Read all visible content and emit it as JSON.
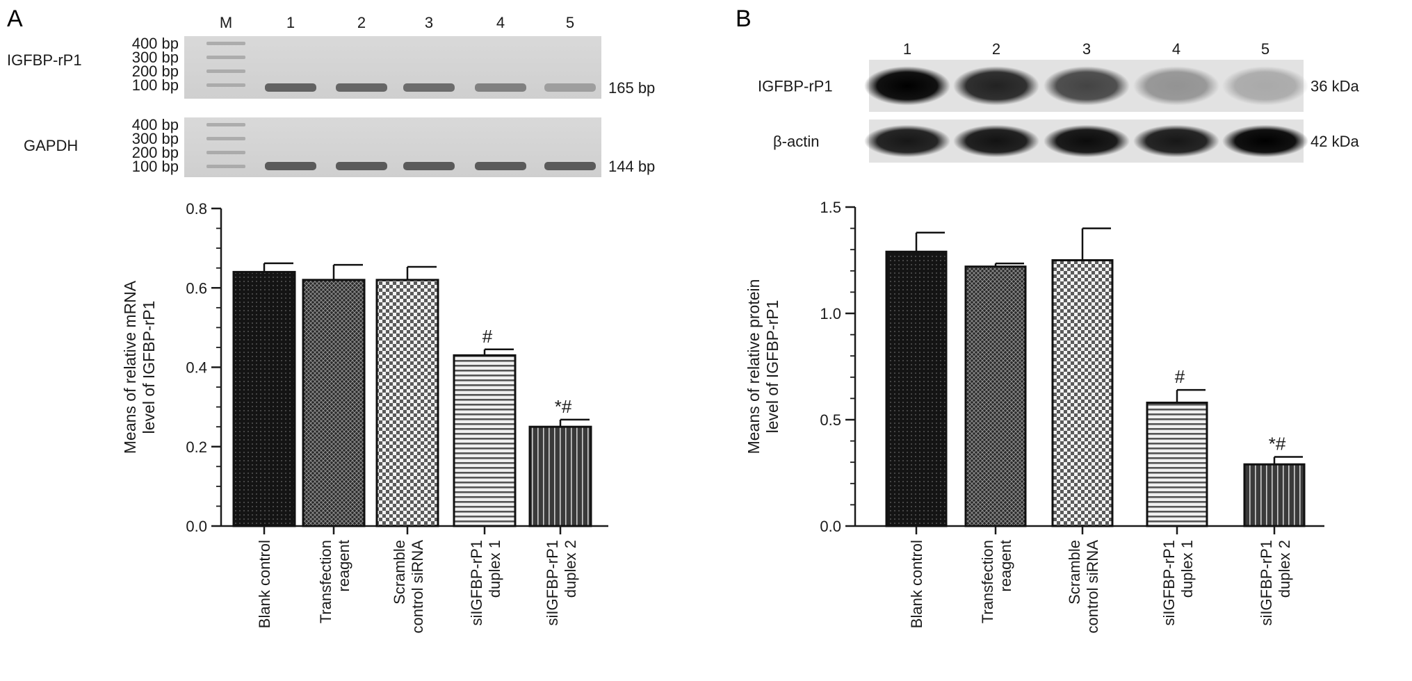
{
  "panels": {
    "A": {
      "letter": "A"
    },
    "B": {
      "letter": "B"
    }
  },
  "gel": {
    "lane_labels": [
      "M",
      "1",
      "2",
      "3",
      "4",
      "5"
    ],
    "marker_labels": [
      "400 bp",
      "300 bp",
      "200 bp",
      "100 bp"
    ],
    "rows": [
      {
        "name": "IGFBP-rP1",
        "size": "165 bp",
        "band_intensity": [
          0.75,
          0.72,
          0.68,
          0.55,
          0.35
        ]
      },
      {
        "name": "GAPDH",
        "size": "144 bp",
        "band_intensity": [
          0.8,
          0.8,
          0.8,
          0.8,
          0.8
        ]
      }
    ]
  },
  "blot": {
    "lane_labels": [
      "1",
      "2",
      "3",
      "4",
      "5"
    ],
    "rows": [
      {
        "name": "IGFBP-rP1",
        "size": "36 kDa",
        "band_intensity": [
          1.0,
          0.85,
          0.7,
          0.35,
          0.25
        ]
      },
      {
        "name": "β-actin",
        "size": "42 kDa",
        "band_intensity": [
          0.9,
          0.92,
          0.95,
          0.9,
          1.0
        ]
      }
    ]
  },
  "chart_data": [
    {
      "type": "bar",
      "panel": "A",
      "categories": [
        [
          "Blank control"
        ],
        [
          "Transfection",
          "reagent"
        ],
        [
          "Scramble",
          "control siRNA"
        ],
        [
          "siIGFBP-rP1",
          "duplex 1"
        ],
        [
          "siIGFBP-rP1",
          "duplex 2"
        ]
      ],
      "values": [
        0.64,
        0.62,
        0.62,
        0.43,
        0.25
      ],
      "errors": [
        0.022,
        0.038,
        0.033,
        0.015,
        0.018
      ],
      "annotations": [
        "",
        "",
        "",
        "#",
        "*#"
      ],
      "patterns": [
        "dots-dark",
        "crosshatch-dark",
        "checker",
        "hlines",
        "vlines"
      ],
      "ylabel": [
        "Means of relative mRNA",
        "level of IGFBP-rP1"
      ],
      "ylim": [
        0,
        0.8
      ],
      "yticks": [
        "0.0",
        "0.2",
        "0.4",
        "0.6",
        "0.8"
      ],
      "grid": false
    },
    {
      "type": "bar",
      "panel": "B",
      "categories": [
        [
          "Blank control"
        ],
        [
          "Transfection",
          "reagent"
        ],
        [
          "Scramble",
          "control siRNA"
        ],
        [
          "siIGFBP-rP1",
          "duplex 1"
        ],
        [
          "siIGFBP-rP1",
          "duplex 2"
        ]
      ],
      "values": [
        1.29,
        1.22,
        1.25,
        0.58,
        0.29
      ],
      "errors": [
        0.09,
        0.015,
        0.15,
        0.06,
        0.035
      ],
      "annotations": [
        "",
        "",
        "",
        "#",
        "*#"
      ],
      "patterns": [
        "dots-dark",
        "crosshatch-dark",
        "checker",
        "hlines",
        "vlines"
      ],
      "ylabel": [
        "Means of relative protein",
        "level of IGFBP-rP1"
      ],
      "ylim": [
        0,
        1.5
      ],
      "yticks": [
        "0.0",
        "0.5",
        "1.0",
        "1.5"
      ],
      "grid": false
    }
  ]
}
